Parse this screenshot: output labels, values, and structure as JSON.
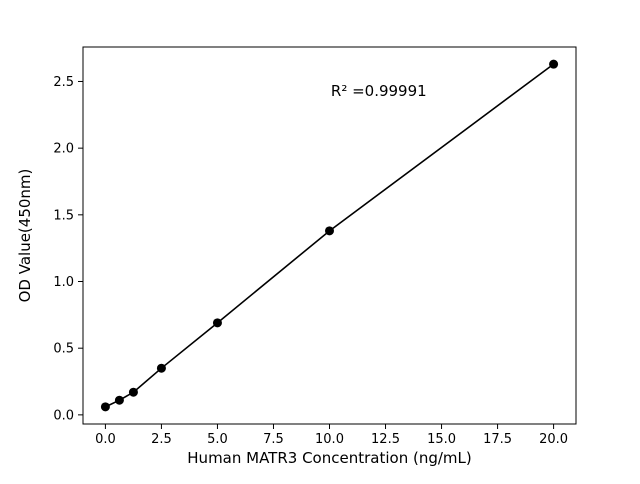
{
  "chart_data": {
    "type": "scatter",
    "title": "",
    "xlabel": "Human MATR3 Concentration (ng/mL)",
    "ylabel": "OD Value(450nm)",
    "annotation": "R² =0.99991",
    "annotation_xy": [
      12.2,
      2.39
    ],
    "x": [
      0,
      0.625,
      1.25,
      2.5,
      5,
      10,
      20
    ],
    "y": [
      0.06,
      0.11,
      0.17,
      0.35,
      0.69,
      1.38,
      2.63
    ],
    "line_through_points": true,
    "marker": "circle",
    "marker_color": "#000000",
    "line_color": "#000000",
    "xlim": [
      -1,
      21
    ],
    "ylim": [
      -0.0685,
      2.7585
    ],
    "x_ticks": [
      0,
      2.5,
      5,
      7.5,
      10,
      12.5,
      15,
      17.5,
      20
    ],
    "y_ticks": [
      0,
      0.5,
      1,
      1.5,
      2,
      2.5
    ],
    "tick_decimals": 1,
    "grid": false,
    "legend_position": "none",
    "background_color": "#ffffff"
  }
}
